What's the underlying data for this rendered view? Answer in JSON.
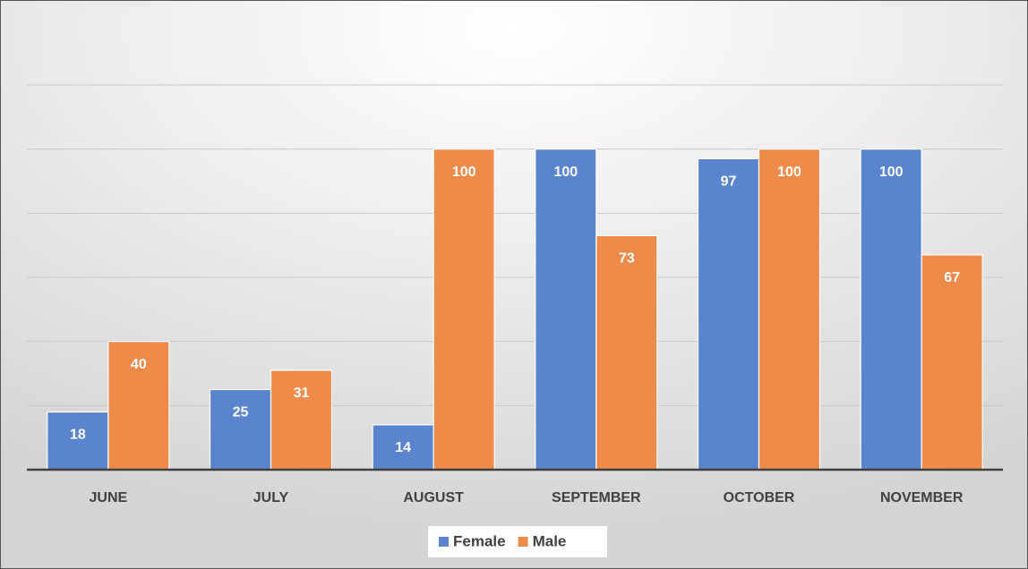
{
  "chart_data": {
    "type": "bar",
    "categories": [
      "JUNE",
      "JULY",
      "AUGUST",
      "SEPTEMBER",
      "OCTOBER",
      "NOVEMBER"
    ],
    "series": [
      {
        "name": "Female",
        "color": "#5a84cd",
        "values": [
          18,
          25,
          14,
          100,
          97,
          100
        ]
      },
      {
        "name": "Male",
        "color": "#ef8b4a",
        "values": [
          40,
          31,
          100,
          73,
          100,
          67
        ]
      }
    ],
    "ylim": [
      0,
      120
    ],
    "yticks": [
      0,
      20,
      40,
      60,
      80,
      100,
      120
    ],
    "grid": true,
    "legend": "bottom"
  }
}
